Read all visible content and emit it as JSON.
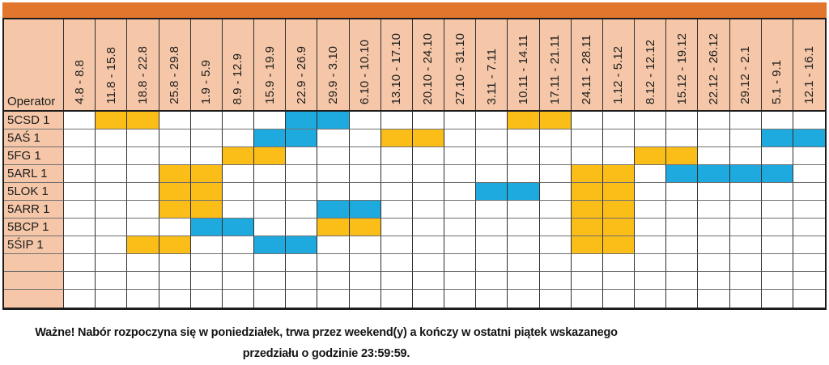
{
  "chart_data": {
    "type": "table",
    "corner_label": "Operator",
    "categories": [
      "4.8 - 8.8",
      "11.8 - 15.8",
      "18.8 - 22.8",
      "25.8 - 29.8",
      "1.9 - 5.9",
      "8.9 - 12.9",
      "15.9 - 19.9",
      "22.9 - 26.9",
      "29.9 - 3.10",
      "6.10 - 10.10",
      "13.10 - 17.10",
      "20.10 - 24.10",
      "27.10 - 31.10",
      "3.11 - 7.11",
      "10.11 - 14.11",
      "17.11 - 21.11",
      "24.11 - 28.11",
      "1.12 - 5.12",
      "8.12 - 12.12",
      "15.12 - 19.12",
      "22.12 - 26.12",
      "29.12 - 2.1",
      "5.1 - 9.1",
      "12.1 - 16.1"
    ],
    "rows": [
      {
        "name": "5CSD 1",
        "cells": ".YY....BB.....YY........"
      },
      {
        "name": "5AŚ 1",
        "cells": "......BB..YY..........BB"
      },
      {
        "name": "5FG 1",
        "cells": ".....YY...........YY...."
      },
      {
        "name": "5ARL 1",
        "cells": "...YY...........YY.BBBB."
      },
      {
        "name": "5LOK 1",
        "cells": "...YY........BB.YY......"
      },
      {
        "name": "5ARR 1",
        "cells": "...YY...BB......YY......"
      },
      {
        "name": "5BCP 1",
        "cells": "....BB..YY......YY......"
      },
      {
        "name": "5ŚIP 1",
        "cells": "..YY..BB........YY......"
      },
      {
        "name": "",
        "cells": "........................"
      },
      {
        "name": "",
        "cells": "........................"
      },
      {
        "name": "",
        "cells": "........................"
      }
    ],
    "cell_states": {
      "Y": "yellow week block",
      "B": "blue week block",
      ".": "empty"
    }
  },
  "note": {
    "line1": "Ważne! Nabór rozpoczyna się w poniedziałek, trwa przez weekend(y) a kończy w ostatni piątek wskazanego",
    "line2": "przedziału o godzinie 23:59:59."
  },
  "colors": {
    "top_bar": "#E2762C",
    "header_bg": "#F5C7A8",
    "cell_yellow": "#FBBD17",
    "cell_blue": "#1EAADF"
  }
}
